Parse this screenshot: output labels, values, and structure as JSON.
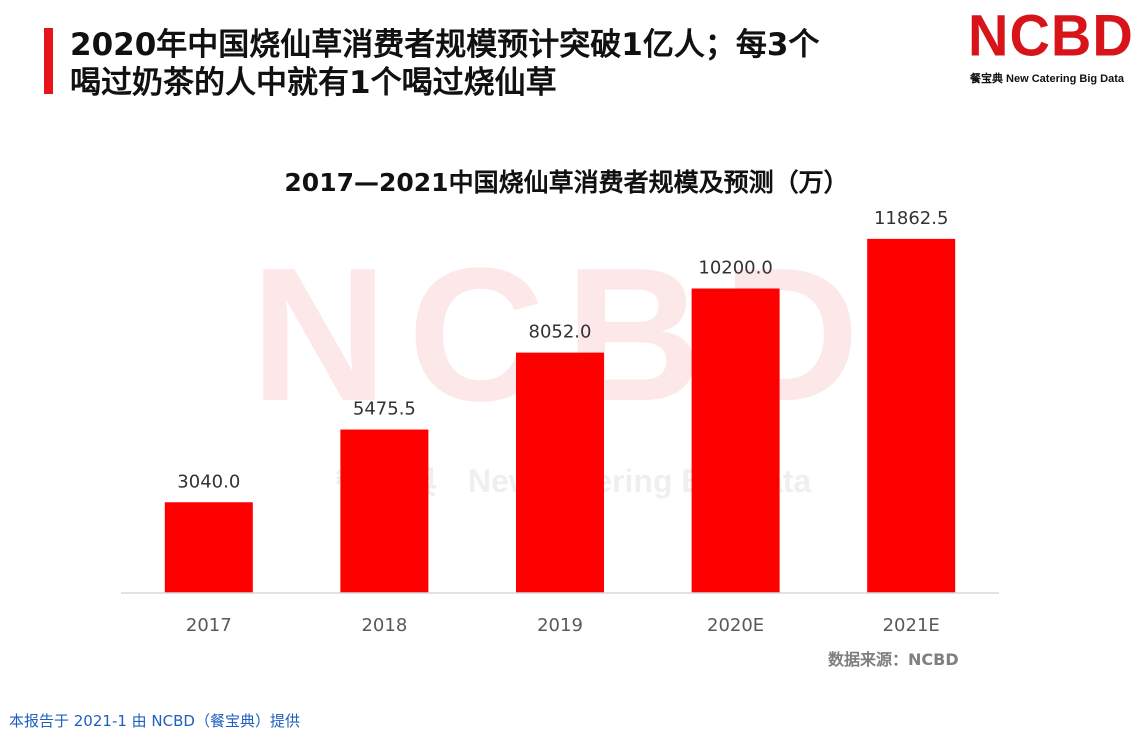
{
  "header": {
    "title_line1": "2020年中国烧仙草消费者规模预计突破1亿人；每3个",
    "title_line2": "喝过奶茶的人中就有1个喝过烧仙草",
    "accent_color": "#e8141b"
  },
  "logo": {
    "mark": "NCBD",
    "tagline": "餐宝典 New Catering Big Data",
    "color": "#d8141b"
  },
  "watermark": {
    "mark": "NCBD",
    "tagline_cn": "餐宝典",
    "tagline_en": "New Catering Big Data"
  },
  "source_note": "数据来源：NCBD",
  "footer_note": "本报告于 2021-1 由 NCBD（餐宝典）提供",
  "chart_data": {
    "type": "bar",
    "title": "2017—2021中国烧仙草消费者规模及预测（万）",
    "categories": [
      "2017",
      "2018",
      "2019",
      "2020E",
      "2021E"
    ],
    "values": [
      3040.0,
      5475.5,
      8052.0,
      10200.0,
      11862.5
    ],
    "value_labels": [
      "3040.0",
      "5475.5",
      "8052.0",
      "10200.0",
      "11862.5"
    ],
    "xlabel": "",
    "ylabel": "",
    "ylim": [
      0,
      13500
    ],
    "bar_color": "#ff0000",
    "grid": false,
    "legend": "none"
  }
}
